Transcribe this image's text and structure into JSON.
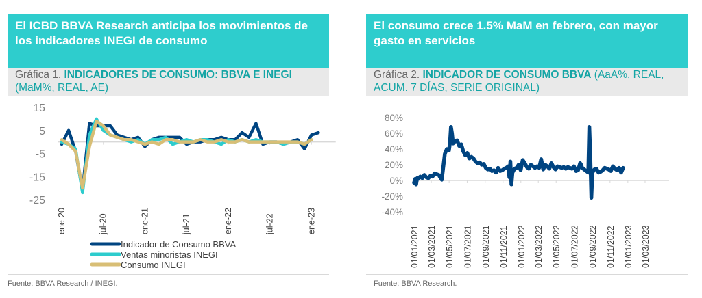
{
  "panels": [
    {
      "headline": "El ICBD BBVA Research anticipa los movimientos de los indicadores INEGI de consumo",
      "subhead_prefix": "Gráfica 1. ",
      "subhead_bold": "INDICADORES DE CONSUMO: BBVA E INEGI",
      "subhead_normal": " (MaM%, REAL, AE)",
      "source": "Fuente: BBVA Research / INEGI."
    },
    {
      "headline": "El consumo crece 1.5% MaM en febrero, con mayor gasto en servicios",
      "subhead_prefix": "Gráfica 2. ",
      "subhead_bold": "INDICADOR DE CONSUMO BBVA",
      "subhead_normal": " (AaA%, REAL, ACUM. 7 DÍAS, SERIE ORIGINAL)",
      "source": "Fuente: BBVA Research."
    }
  ],
  "colors": {
    "accent": "#2ecdcd",
    "bbva": "#004481",
    "ventas": "#2dcccd",
    "consumo": "#d8be75",
    "axis_text": "#808080",
    "gridline": "#d9d9d9"
  },
  "chart_data": [
    {
      "type": "line",
      "title": "INDICADORES DE CONSUMO: BBVA E INEGI (MaM%, REAL, AE)",
      "xlabel": "",
      "ylabel": "",
      "ylim": [
        -25,
        15
      ],
      "yticks": [
        15,
        5,
        -5,
        -15,
        -25
      ],
      "xtick_labels": [
        "ene-20",
        "jul-20",
        "ene-21",
        "jul-21",
        "ene-22",
        "jul-22",
        "ene-23"
      ],
      "xtick_month_index": [
        0,
        6,
        12,
        18,
        24,
        30,
        36
      ],
      "legend_position": "bottom",
      "grid": false,
      "series": [
        {
          "name": "Indicador de Consumo BBVA",
          "color_key": "bbva",
          "start_month_index": 0,
          "values": [
            -1,
            5,
            -4,
            -21,
            8,
            7,
            7,
            7,
            3,
            2,
            1,
            2,
            -2,
            1,
            2,
            2,
            2,
            2,
            -1,
            0,
            0,
            1,
            1,
            2,
            1,
            1,
            4,
            2,
            8,
            -1,
            0,
            0,
            -1,
            0,
            1,
            -3,
            3,
            4
          ]
        },
        {
          "name": "Ventas minoristas INEGI",
          "color_key": "ventas",
          "start_month_index": 0,
          "values": [
            0,
            -1,
            -3,
            -22,
            3,
            10,
            5,
            3,
            2,
            1,
            0,
            1,
            -1,
            1,
            1,
            2,
            -1,
            0,
            1,
            0,
            1,
            1,
            0,
            -1,
            1,
            0,
            1,
            0,
            1,
            0,
            0,
            0,
            -1,
            0,
            0,
            -1,
            1
          ]
        },
        {
          "name": "Consumo INEGI",
          "color_key": "consumo",
          "start_month_index": 0,
          "values": [
            1,
            -1,
            -4,
            -20,
            -2,
            9,
            7,
            3,
            2,
            1,
            1,
            0,
            -1,
            0,
            -1,
            1,
            1,
            0,
            0,
            0,
            1,
            0,
            0,
            1,
            0,
            0,
            1,
            0,
            0,
            0,
            0,
            0,
            0,
            0,
            0,
            -1,
            1
          ]
        }
      ]
    },
    {
      "type": "line",
      "title": "INDICADOR DE CONSUMO BBVA (AaA%, REAL, ACUM. 7 DÍAS, SERIE ORIGINAL)",
      "xlabel": "",
      "ylabel": "",
      "ylim": [
        -40,
        80
      ],
      "yticks": [
        80,
        60,
        40,
        20,
        0,
        -20,
        -40
      ],
      "ytick_format": "percent",
      "xtick_labels": [
        "01/01/2021",
        "01/03/2021",
        "01/05/2021",
        "01/07/2021",
        "01/09/2021",
        "01/11/2021",
        "01/01/2022",
        "01/03/2022",
        "01/05/2022",
        "01/07/2022",
        "01/09/2022",
        "01/11/2022",
        "01/01/2023",
        "01/03/2023"
      ],
      "x_unit": "weeks since 01/01/2021",
      "xtick_week_index": [
        0,
        8.4,
        17.1,
        25.9,
        34.7,
        43.4,
        52.1,
        60.6,
        69.3,
        78.1,
        86.9,
        95.6,
        104.3,
        112.7
      ],
      "legend_position": "none",
      "grid": false,
      "series": [
        {
          "name": "Indicador de Consumo BBVA",
          "color_key": "bbva",
          "points": [
            [
              0,
              -3
            ],
            [
              0.5,
              2
            ],
            [
              1,
              -5
            ],
            [
              1.5,
              3
            ],
            [
              2,
              2
            ],
            [
              3,
              5
            ],
            [
              4,
              3
            ],
            [
              5,
              7
            ],
            [
              6,
              4
            ],
            [
              7,
              3
            ],
            [
              8,
              6
            ],
            [
              9,
              5
            ],
            [
              10,
              9
            ],
            [
              11,
              8
            ],
            [
              12,
              7
            ],
            [
              13,
              3
            ],
            [
              13.5,
              1
            ],
            [
              14,
              12
            ],
            [
              15,
              34
            ],
            [
              16,
              40
            ],
            [
              17,
              38
            ],
            [
              17.5,
              47
            ],
            [
              18,
              68
            ],
            [
              18.5,
              60
            ],
            [
              19,
              47
            ],
            [
              20,
              50
            ],
            [
              21,
              51
            ],
            [
              22,
              44
            ],
            [
              23,
              46
            ],
            [
              24,
              37
            ],
            [
              25,
              32
            ],
            [
              26,
              35
            ],
            [
              27,
              28
            ],
            [
              28,
              30
            ],
            [
              29,
              28
            ],
            [
              30,
              24
            ],
            [
              31,
              22
            ],
            [
              32,
              23
            ],
            [
              33,
              20
            ],
            [
              34,
              21
            ],
            [
              35,
              16
            ],
            [
              36,
              14
            ],
            [
              37,
              15
            ],
            [
              38,
              12
            ],
            [
              39,
              13
            ],
            [
              40,
              10
            ],
            [
              41,
              16
            ],
            [
              42,
              12
            ],
            [
              43,
              13
            ],
            [
              44,
              15
            ],
            [
              45,
              16
            ],
            [
              46,
              18
            ],
            [
              46.5,
              4
            ],
            [
              47,
              24
            ],
            [
              47.5,
              -5
            ],
            [
              48,
              10
            ],
            [
              49,
              15
            ],
            [
              50,
              16
            ],
            [
              51,
              20
            ],
            [
              52,
              13
            ],
            [
              53,
              26
            ],
            [
              54,
              22
            ],
            [
              55,
              17
            ],
            [
              56,
              15
            ],
            [
              57,
              20
            ],
            [
              58,
              18
            ],
            [
              59,
              16
            ],
            [
              60,
              18
            ],
            [
              61,
              16
            ],
            [
              62,
              27
            ],
            [
              63,
              14
            ],
            [
              64,
              20
            ],
            [
              65,
              18
            ],
            [
              66,
              15
            ],
            [
              67,
              22
            ],
            [
              68,
              17
            ],
            [
              69,
              14
            ],
            [
              70,
              18
            ],
            [
              71,
              17
            ],
            [
              72,
              16
            ],
            [
              73,
              17
            ],
            [
              74,
              15
            ],
            [
              75,
              17
            ],
            [
              76,
              16
            ],
            [
              77,
              15
            ],
            [
              78,
              18
            ],
            [
              79,
              12
            ],
            [
              80,
              13
            ],
            [
              81,
              22
            ],
            [
              81.5,
              20
            ],
            [
              82,
              16
            ],
            [
              83,
              14
            ],
            [
              84,
              12
            ],
            [
              85,
              10
            ],
            [
              85.5,
              68
            ],
            [
              86,
              30
            ],
            [
              86.5,
              -22
            ],
            [
              87,
              10
            ],
            [
              88,
              14
            ],
            [
              89,
              15
            ],
            [
              90,
              10
            ],
            [
              91,
              11
            ],
            [
              92,
              13
            ],
            [
              93,
              16
            ],
            [
              94,
              15
            ],
            [
              95,
              14
            ],
            [
              96,
              12
            ],
            [
              97,
              18
            ],
            [
              98,
              15
            ],
            [
              99,
              13
            ],
            [
              100,
              16
            ],
            [
              101,
              10
            ],
            [
              102,
              16
            ]
          ]
        }
      ]
    }
  ]
}
